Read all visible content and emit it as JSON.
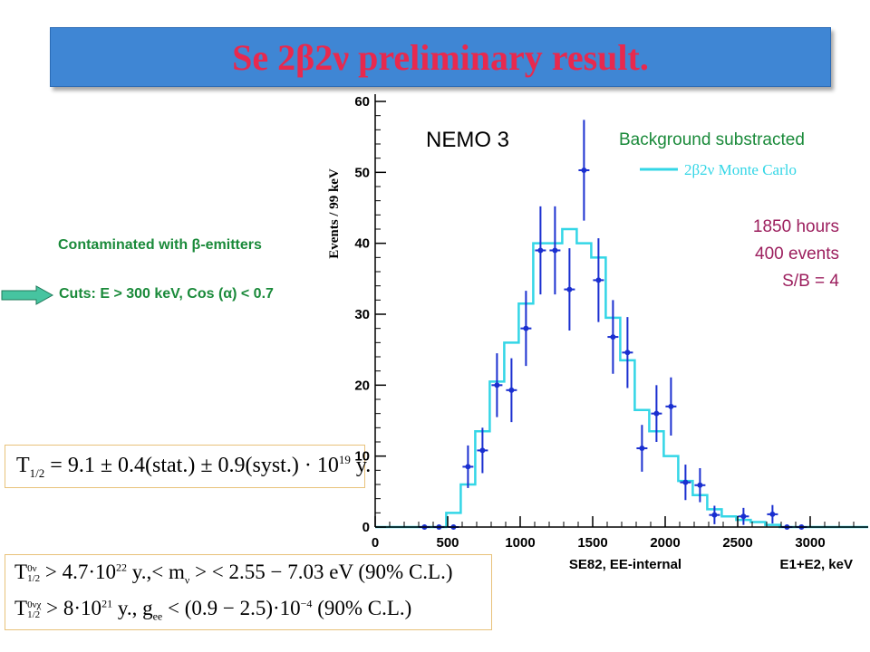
{
  "title": "Se 2β2ν preliminary result.",
  "left_notes": {
    "contaminated": "Contaminated with β-emitters",
    "cuts": "Cuts:  E > 300 keV, Cos (α) < 0.7"
  },
  "formulas": {
    "f1": "T1/2 = 9.1 ± 0.4(stat.) ± 0.9(syst.)·10^19 y.",
    "f1_parts": {
      "lhs": "T",
      "sub": "1/2",
      "rhs": "= 9.1 ± 0.4(stat.) ± 0.9(syst.) · 10",
      "exp": "19",
      "tail": " y."
    },
    "f2_parts": {
      "lhs": "T",
      "sub": "1/2",
      "sup": "0ν",
      "rhs": "> 4.7·10",
      "exp": "22",
      "tail": " y.,< m",
      "sub2": "ν",
      "tail2": " > < 2.55 − 7.03 eV (90% C.L.)"
    },
    "f3_parts": {
      "lhs": "T",
      "sub": "1/2",
      "sup": "0νχ",
      "rhs": "> 8·10",
      "exp": "21",
      "tail": " y.,   g",
      "sub2": "ee",
      "tail2": " < (0.9 − 2.5)·10",
      "exp2": "−4",
      "tail3": " (90% C.L.)"
    }
  },
  "chart_data": {
    "type": "histogram",
    "title": "",
    "ylabel": "Events / 99 keV",
    "xlabel_left": "SE82, EE-internal",
    "xlabel_right": "E1+E2, keV",
    "xlim": [
      0,
      3400
    ],
    "ylim": [
      0,
      60
    ],
    "x_ticks": [
      0,
      500,
      1000,
      1500,
      2000,
      2500,
      3000
    ],
    "y_ticks": [
      0,
      10,
      20,
      30,
      40,
      50,
      60
    ],
    "annotations": {
      "experiment": "NEMO 3",
      "bkg": "Background substracted",
      "legend_label": "2β2ν  Monte Carlo",
      "hours": "1850 hours",
      "events": "400  events",
      "sb": "S/B = 4"
    },
    "colors": {
      "data": "#1a2fd0",
      "mc": "#33d6e6",
      "annot": "#9c1f5e",
      "bkg_text": "#1a8a3a"
    },
    "data_points": [
      {
        "x": 340,
        "y": 0,
        "err": 0
      },
      {
        "x": 440,
        "y": 0,
        "err": 0
      },
      {
        "x": 540,
        "y": 0,
        "err": 0
      },
      {
        "x": 640,
        "y": 8.5,
        "err": 3
      },
      {
        "x": 740,
        "y": 10.8,
        "err": 3.2
      },
      {
        "x": 840,
        "y": 20,
        "err": 4.5
      },
      {
        "x": 940,
        "y": 19.3,
        "err": 4.5
      },
      {
        "x": 1040,
        "y": 28,
        "err": 5.3
      },
      {
        "x": 1140,
        "y": 39,
        "err": 6.2
      },
      {
        "x": 1240,
        "y": 39,
        "err": 6.2
      },
      {
        "x": 1340,
        "y": 33.5,
        "err": 5.8
      },
      {
        "x": 1440,
        "y": 50.3,
        "err": 7.1
      },
      {
        "x": 1540,
        "y": 34.8,
        "err": 5.9
      },
      {
        "x": 1640,
        "y": 26.8,
        "err": 5.2
      },
      {
        "x": 1740,
        "y": 24.6,
        "err": 5
      },
      {
        "x": 1840,
        "y": 11.1,
        "err": 3.3
      },
      {
        "x": 1940,
        "y": 16,
        "err": 4
      },
      {
        "x": 2040,
        "y": 17,
        "err": 4.1
      },
      {
        "x": 2140,
        "y": 6.3,
        "err": 2.5
      },
      {
        "x": 2240,
        "y": 5.9,
        "err": 2.4
      },
      {
        "x": 2340,
        "y": 1.7,
        "err": 1.3
      },
      {
        "x": 2540,
        "y": 1.5,
        "err": 1.2
      },
      {
        "x": 2740,
        "y": 1.8,
        "err": 1.3
      },
      {
        "x": 2840,
        "y": 0,
        "err": 0
      },
      {
        "x": 2940,
        "y": 0,
        "err": 0
      }
    ],
    "mc_bins": [
      {
        "x0": 0,
        "x1": 490,
        "y": 0
      },
      {
        "x0": 490,
        "x1": 590,
        "y": 2
      },
      {
        "x0": 590,
        "x1": 690,
        "y": 6
      },
      {
        "x0": 690,
        "x1": 790,
        "y": 13.5
      },
      {
        "x0": 790,
        "x1": 890,
        "y": 20.5
      },
      {
        "x0": 890,
        "x1": 990,
        "y": 26
      },
      {
        "x0": 990,
        "x1": 1090,
        "y": 31.5
      },
      {
        "x0": 1090,
        "x1": 1190,
        "y": 40
      },
      {
        "x0": 1190,
        "x1": 1290,
        "y": 40
      },
      {
        "x0": 1290,
        "x1": 1390,
        "y": 42
      },
      {
        "x0": 1390,
        "x1": 1490,
        "y": 40
      },
      {
        "x0": 1490,
        "x1": 1590,
        "y": 38
      },
      {
        "x0": 1590,
        "x1": 1690,
        "y": 29.5
      },
      {
        "x0": 1690,
        "x1": 1790,
        "y": 23.5
      },
      {
        "x0": 1790,
        "x1": 1890,
        "y": 16.5
      },
      {
        "x0": 1890,
        "x1": 1990,
        "y": 13.5
      },
      {
        "x0": 1990,
        "x1": 2090,
        "y": 10
      },
      {
        "x0": 2090,
        "x1": 2190,
        "y": 6.5
      },
      {
        "x0": 2190,
        "x1": 2290,
        "y": 4.5
      },
      {
        "x0": 2290,
        "x1": 2390,
        "y": 2.5
      },
      {
        "x0": 2390,
        "x1": 2490,
        "y": 1.5
      },
      {
        "x0": 2490,
        "x1": 2590,
        "y": 1
      },
      {
        "x0": 2590,
        "x1": 2690,
        "y": 0.7
      },
      {
        "x0": 2690,
        "x1": 2790,
        "y": 0.3
      },
      {
        "x0": 2790,
        "x1": 3400,
        "y": 0
      }
    ]
  }
}
